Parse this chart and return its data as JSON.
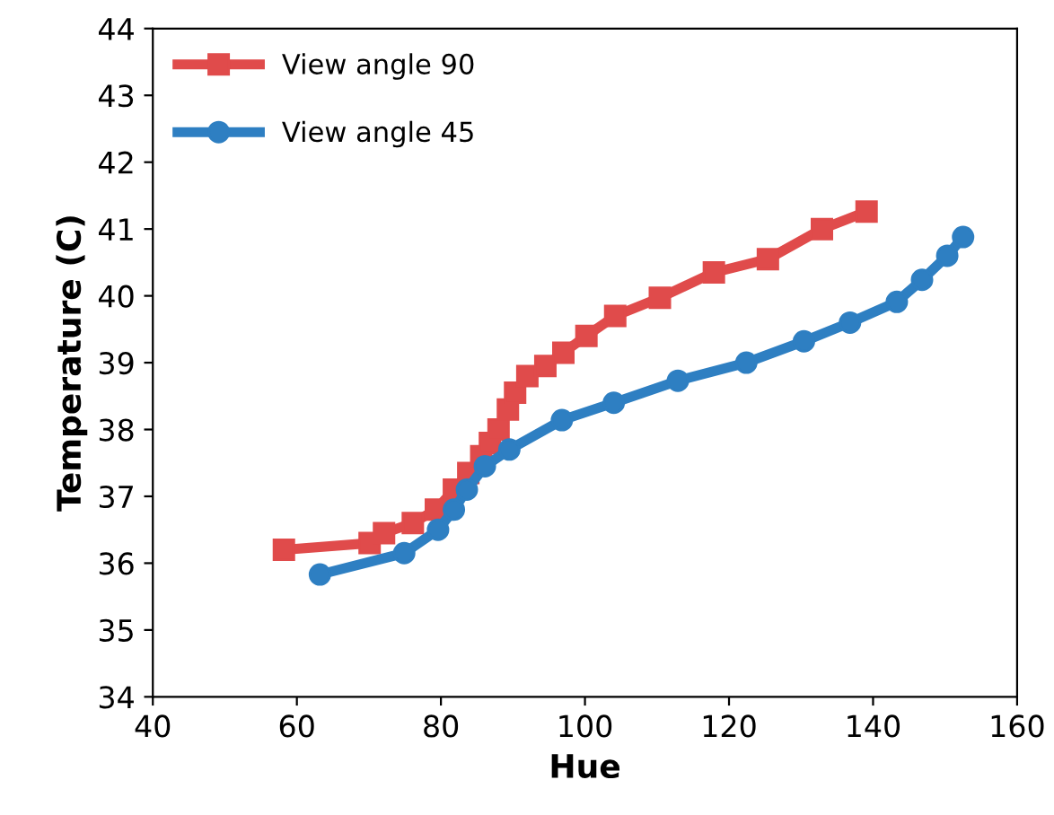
{
  "chart_data": {
    "type": "line",
    "xlabel": "Hue",
    "ylabel": "Temperature (C)",
    "xlim": [
      40,
      160
    ],
    "xticks": [
      40,
      60,
      80,
      100,
      120,
      140,
      160
    ],
    "ylim": [
      34,
      44
    ],
    "yticks": [
      34,
      35,
      36,
      37,
      38,
      39,
      40,
      41,
      42,
      43,
      44
    ],
    "grid": false,
    "legend": "top left",
    "series": [
      {
        "name": "View angle 90",
        "color": "#e04b4b",
        "marker": "square",
        "x": [
          58.2,
          70.1,
          72.1,
          76.1,
          79.3,
          81.8,
          83.8,
          85.6,
          86.8,
          88.0,
          89.3,
          90.3,
          92.0,
          94.5,
          97.0,
          100.2,
          104.2,
          110.4,
          117.9,
          125.4,
          132.9,
          139.1
        ],
        "values": [
          36.2,
          36.3,
          36.45,
          36.6,
          36.8,
          37.1,
          37.35,
          37.6,
          37.8,
          38.0,
          38.3,
          38.55,
          38.8,
          38.95,
          39.15,
          39.4,
          39.7,
          39.97,
          40.35,
          40.55,
          41.0,
          41.26
        ]
      },
      {
        "name": "View angle 45",
        "color": "#2e7fc2",
        "marker": "circle",
        "x": [
          63.2,
          74.9,
          79.6,
          81.8,
          83.6,
          86.1,
          89.5,
          96.8,
          104.0,
          112.9,
          122.4,
          130.4,
          136.8,
          143.3,
          146.8,
          150.3,
          152.5
        ],
        "values": [
          35.83,
          36.15,
          36.5,
          36.8,
          37.1,
          37.45,
          37.7,
          38.14,
          38.4,
          38.73,
          39.0,
          39.32,
          39.6,
          39.91,
          40.24,
          40.6,
          40.88
        ]
      }
    ]
  }
}
